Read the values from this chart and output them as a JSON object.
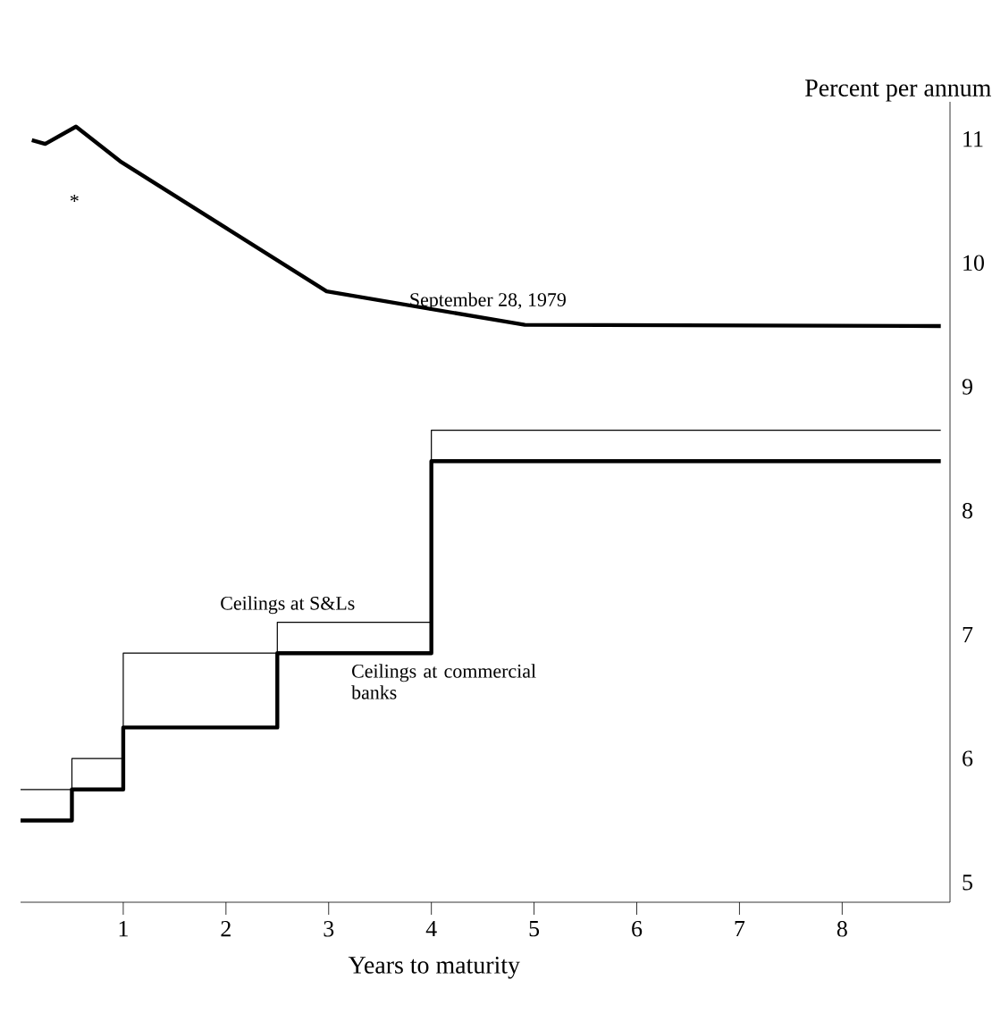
{
  "chart_data": {
    "type": "line",
    "xlabel": "Years to maturity",
    "ylabel": "Percent per annum",
    "xlim": [
      0,
      9.05
    ],
    "ylim": [
      4.84,
      11.3
    ],
    "xticks": [
      1,
      2,
      3,
      4,
      5,
      6,
      7,
      8
    ],
    "yticks": [
      5,
      6,
      7,
      8,
      9,
      10,
      11
    ],
    "tick_labels": "x_and_y",
    "grid": false,
    "annotations": [
      "*"
    ],
    "series": [
      {
        "name": "September 28, 1979",
        "color": "#000000",
        "x": [
          0.11,
          0.24,
          0.54,
          0.97,
          2.98,
          4.91,
          8.96
        ],
        "values": [
          10.99,
          10.96,
          11.1,
          10.82,
          9.77,
          9.5,
          9.49
        ]
      },
      {
        "name": "Ceilings at S&Ls",
        "type": "step",
        "color": "#000000",
        "x": [
          0,
          0.5,
          1,
          2.5,
          4,
          8.96
        ],
        "values": [
          5.75,
          6.0,
          6.85,
          7.1,
          8.65,
          8.65
        ]
      },
      {
        "name": "Ceilings at commercial banks",
        "type": "step",
        "color": "#000000",
        "x": [
          0,
          0.5,
          1,
          2.5,
          4,
          8.96
        ],
        "values": [
          5.5,
          5.75,
          6.25,
          6.85,
          8.4,
          8.4
        ]
      }
    ]
  }
}
